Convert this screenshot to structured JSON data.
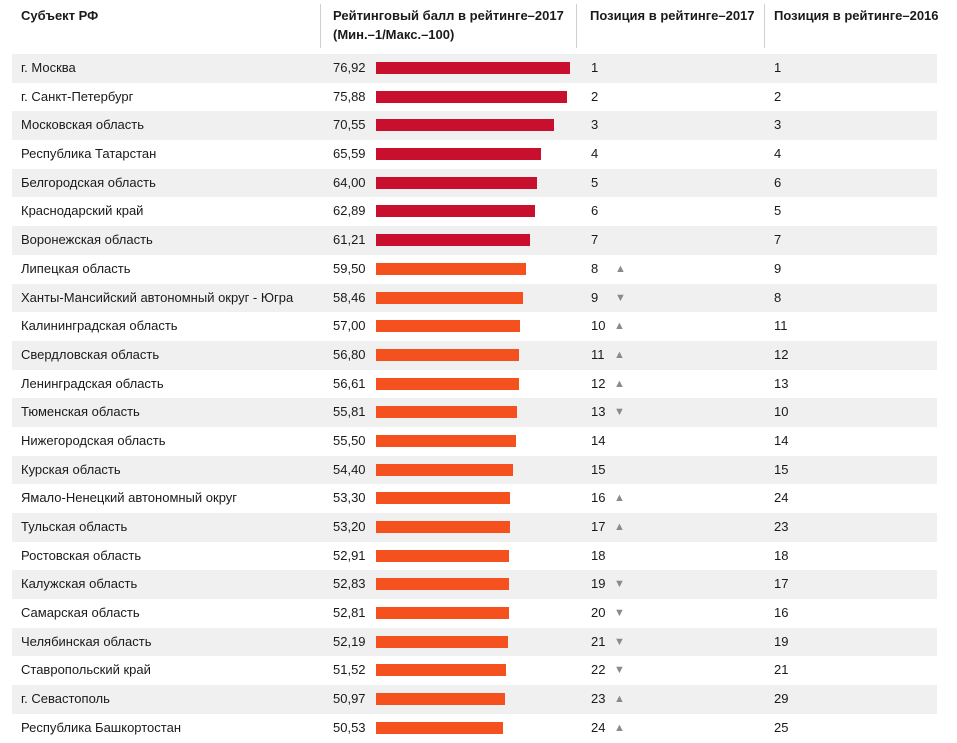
{
  "header": {
    "region": "Субъект РФ",
    "score_line1": "Рейтинговый балл в рейтинге–2017",
    "score_line2": "(Мин.–1/Макс.–100)",
    "pos2017": "Позиция в рейтинге–2017",
    "pos2016": "Позиция в рейтинге–2016"
  },
  "colors": {
    "top": "#c8102e",
    "rest": "#f4511e",
    "stripe": "#f0f0f0",
    "arrow": "#8a8a8a"
  },
  "chart_data": {
    "type": "table",
    "title": "",
    "columns": [
      "Субъект РФ",
      "Рейтинговый балл в рейтинге–2017 (Мин.–1/Макс.–100)",
      "Позиция в рейтинге–2017",
      "Позиция в рейтинге–2016"
    ],
    "score_range": [
      1,
      100
    ],
    "rows": [
      {
        "region": "г. Москва",
        "score": "76,92",
        "value": 76.92,
        "pos2017": "1",
        "trend": "",
        "pos2016": "1",
        "tier": "top"
      },
      {
        "region": "г. Санкт-Петербург",
        "score": "75,88",
        "value": 75.88,
        "pos2017": "2",
        "trend": "",
        "pos2016": "2",
        "tier": "top"
      },
      {
        "region": "Московская область",
        "score": "70,55",
        "value": 70.55,
        "pos2017": "3",
        "trend": "",
        "pos2016": "3",
        "tier": "top"
      },
      {
        "region": "Республика Татарстан",
        "score": "65,59",
        "value": 65.59,
        "pos2017": "4",
        "trend": "",
        "pos2016": "4",
        "tier": "top"
      },
      {
        "region": "Белгородская область",
        "score": "64,00",
        "value": 64.0,
        "pos2017": "5",
        "trend": "",
        "pos2016": "6",
        "tier": "top"
      },
      {
        "region": "Краснодарский край",
        "score": "62,89",
        "value": 62.89,
        "pos2017": "6",
        "trend": "",
        "pos2016": "5",
        "tier": "top"
      },
      {
        "region": "Воронежская область",
        "score": "61,21",
        "value": 61.21,
        "pos2017": "7",
        "trend": "",
        "pos2016": "7",
        "tier": "top"
      },
      {
        "region": "Липецкая область",
        "score": "59,50",
        "value": 59.5,
        "pos2017": "8",
        "trend": "▲",
        "pos2016": "9",
        "tier": "rest"
      },
      {
        "region": "Ханты-Мансийский автономный округ - Югра",
        "score": "58,46",
        "value": 58.46,
        "pos2017": "9",
        "trend": "▼",
        "pos2016": "8",
        "tier": "rest"
      },
      {
        "region": "Калининградская область",
        "score": "57,00",
        "value": 57.0,
        "pos2017": "10",
        "trend": "▲",
        "pos2016": "11",
        "tier": "rest"
      },
      {
        "region": "Свердловская область",
        "score": "56,80",
        "value": 56.8,
        "pos2017": "11",
        "trend": "▲",
        "pos2016": "12",
        "tier": "rest"
      },
      {
        "region": "Ленинградская область",
        "score": "56,61",
        "value": 56.61,
        "pos2017": "12",
        "trend": "▲",
        "pos2016": "13",
        "tier": "rest"
      },
      {
        "region": "Тюменская область",
        "score": "55,81",
        "value": 55.81,
        "pos2017": "13",
        "trend": "▼",
        "pos2016": "10",
        "tier": "rest"
      },
      {
        "region": "Нижегородская область",
        "score": "55,50",
        "value": 55.5,
        "pos2017": "14",
        "trend": "",
        "pos2016": "14",
        "tier": "rest"
      },
      {
        "region": "Курская область",
        "score": "54,40",
        "value": 54.4,
        "pos2017": "15",
        "trend": "",
        "pos2016": "15",
        "tier": "rest"
      },
      {
        "region": "Ямало-Ненецкий автономный округ",
        "score": "53,30",
        "value": 53.3,
        "pos2017": "16",
        "trend": "▲",
        "pos2016": "24",
        "tier": "rest"
      },
      {
        "region": "Тульская область",
        "score": "53,20",
        "value": 53.2,
        "pos2017": "17",
        "trend": "▲",
        "pos2016": "23",
        "tier": "rest"
      },
      {
        "region": "Ростовская область",
        "score": "52,91",
        "value": 52.91,
        "pos2017": "18",
        "trend": "",
        "pos2016": "18",
        "tier": "rest"
      },
      {
        "region": "Калужская область",
        "score": "52,83",
        "value": 52.83,
        "pos2017": "19",
        "trend": "▼",
        "pos2016": "17",
        "tier": "rest"
      },
      {
        "region": "Самарская область",
        "score": "52,81",
        "value": 52.81,
        "pos2017": "20",
        "trend": "▼",
        "pos2016": "16",
        "tier": "rest"
      },
      {
        "region": "Челябинская область",
        "score": "52,19",
        "value": 52.19,
        "pos2017": "21",
        "trend": "▼",
        "pos2016": "19",
        "tier": "rest"
      },
      {
        "region": "Ставропольский край",
        "score": "51,52",
        "value": 51.52,
        "pos2017": "22",
        "trend": "▼",
        "pos2016": "21",
        "tier": "rest"
      },
      {
        "region": "г. Севастополь",
        "score": "50,97",
        "value": 50.97,
        "pos2017": "23",
        "trend": "▲",
        "pos2016": "29",
        "tier": "rest"
      },
      {
        "region": "Республика Башкортостан",
        "score": "50,53",
        "value": 50.53,
        "pos2017": "24",
        "trend": "▲",
        "pos2016": "25",
        "tier": "rest"
      }
    ]
  }
}
